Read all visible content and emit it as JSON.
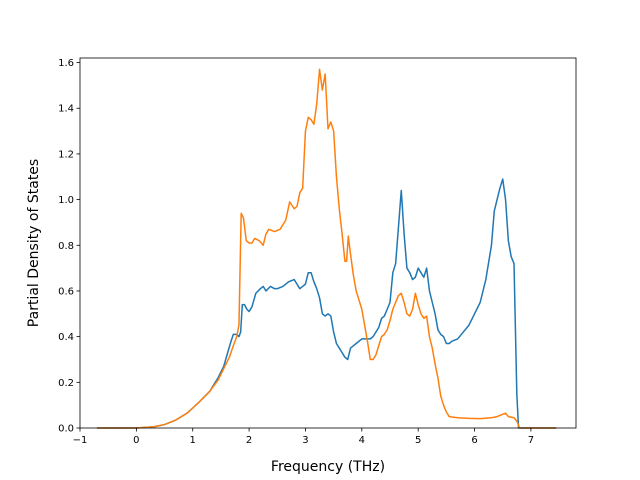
{
  "chart_data": {
    "type": "line",
    "title": "",
    "xlabel": "Frequency (THz)",
    "ylabel": "Partial Density of States",
    "xlim": [
      -1.0,
      7.8
    ],
    "ylim": [
      0.0,
      1.62
    ],
    "xticks": [
      -1,
      0,
      1,
      2,
      3,
      4,
      5,
      6,
      7
    ],
    "yticks": [
      0.0,
      0.2,
      0.4,
      0.6,
      0.8,
      1.0,
      1.2,
      1.4,
      1.6
    ],
    "xtick_labels": [
      "−1",
      "0",
      "1",
      "2",
      "3",
      "4",
      "5",
      "6",
      "7"
    ],
    "ytick_labels": [
      "0.0",
      "0.2",
      "0.4",
      "0.6",
      "0.8",
      "1.0",
      "1.2",
      "1.4",
      "1.6"
    ],
    "grid": false,
    "legend": "none",
    "series": [
      {
        "color": "#1f77b4",
        "points": [
          [
            -0.7,
            0.0
          ],
          [
            0.0,
            0.0
          ],
          [
            0.3,
            0.005
          ],
          [
            0.5,
            0.015
          ],
          [
            0.7,
            0.035
          ],
          [
            0.9,
            0.065
          ],
          [
            1.1,
            0.11
          ],
          [
            1.3,
            0.16
          ],
          [
            1.45,
            0.22
          ],
          [
            1.55,
            0.27
          ],
          [
            1.62,
            0.33
          ],
          [
            1.68,
            0.38
          ],
          [
            1.72,
            0.41
          ],
          [
            1.78,
            0.41
          ],
          [
            1.82,
            0.4
          ],
          [
            1.85,
            0.42
          ],
          [
            1.88,
            0.54
          ],
          [
            1.92,
            0.54
          ],
          [
            1.96,
            0.52
          ],
          [
            2.0,
            0.51
          ],
          [
            2.05,
            0.53
          ],
          [
            2.12,
            0.59
          ],
          [
            2.2,
            0.61
          ],
          [
            2.25,
            0.62
          ],
          [
            2.3,
            0.6
          ],
          [
            2.38,
            0.62
          ],
          [
            2.45,
            0.61
          ],
          [
            2.5,
            0.61
          ],
          [
            2.6,
            0.62
          ],
          [
            2.7,
            0.64
          ],
          [
            2.8,
            0.65
          ],
          [
            2.85,
            0.63
          ],
          [
            2.9,
            0.61
          ],
          [
            2.95,
            0.62
          ],
          [
            3.0,
            0.63
          ],
          [
            3.05,
            0.68
          ],
          [
            3.1,
            0.68
          ],
          [
            3.15,
            0.64
          ],
          [
            3.2,
            0.61
          ],
          [
            3.25,
            0.57
          ],
          [
            3.3,
            0.5
          ],
          [
            3.35,
            0.49
          ],
          [
            3.4,
            0.5
          ],
          [
            3.45,
            0.49
          ],
          [
            3.5,
            0.42
          ],
          [
            3.55,
            0.37
          ],
          [
            3.6,
            0.35
          ],
          [
            3.65,
            0.33
          ],
          [
            3.7,
            0.31
          ],
          [
            3.75,
            0.3
          ],
          [
            3.8,
            0.35
          ],
          [
            3.85,
            0.36
          ],
          [
            3.9,
            0.37
          ],
          [
            4.0,
            0.39
          ],
          [
            4.1,
            0.39
          ],
          [
            4.15,
            0.39
          ],
          [
            4.2,
            0.4
          ],
          [
            4.3,
            0.44
          ],
          [
            4.35,
            0.48
          ],
          [
            4.4,
            0.49
          ],
          [
            4.45,
            0.52
          ],
          [
            4.5,
            0.55
          ],
          [
            4.55,
            0.68
          ],
          [
            4.6,
            0.72
          ],
          [
            4.65,
            0.88
          ],
          [
            4.7,
            1.04
          ],
          [
            4.75,
            0.85
          ],
          [
            4.8,
            0.7
          ],
          [
            4.85,
            0.68
          ],
          [
            4.9,
            0.65
          ],
          [
            4.95,
            0.66
          ],
          [
            5.0,
            0.7
          ],
          [
            5.05,
            0.68
          ],
          [
            5.1,
            0.66
          ],
          [
            5.15,
            0.7
          ],
          [
            5.2,
            0.6
          ],
          [
            5.25,
            0.55
          ],
          [
            5.3,
            0.5
          ],
          [
            5.35,
            0.43
          ],
          [
            5.4,
            0.41
          ],
          [
            5.45,
            0.4
          ],
          [
            5.5,
            0.37
          ],
          [
            5.55,
            0.37
          ],
          [
            5.6,
            0.38
          ],
          [
            5.7,
            0.39
          ],
          [
            5.8,
            0.42
          ],
          [
            5.9,
            0.45
          ],
          [
            6.0,
            0.5
          ],
          [
            6.1,
            0.55
          ],
          [
            6.2,
            0.65
          ],
          [
            6.3,
            0.8
          ],
          [
            6.35,
            0.95
          ],
          [
            6.4,
            1.0
          ],
          [
            6.45,
            1.05
          ],
          [
            6.5,
            1.09
          ],
          [
            6.55,
            1.0
          ],
          [
            6.6,
            0.82
          ],
          [
            6.65,
            0.75
          ],
          [
            6.7,
            0.72
          ],
          [
            6.75,
            0.15
          ],
          [
            6.78,
            0.0
          ],
          [
            7.45,
            0.0
          ]
        ]
      },
      {
        "color": "#ff7f0e",
        "points": [
          [
            -0.7,
            0.0
          ],
          [
            0.0,
            0.0
          ],
          [
            0.3,
            0.005
          ],
          [
            0.5,
            0.015
          ],
          [
            0.7,
            0.035
          ],
          [
            0.9,
            0.065
          ],
          [
            1.1,
            0.11
          ],
          [
            1.3,
            0.16
          ],
          [
            1.45,
            0.21
          ],
          [
            1.55,
            0.26
          ],
          [
            1.65,
            0.31
          ],
          [
            1.72,
            0.36
          ],
          [
            1.78,
            0.4
          ],
          [
            1.82,
            0.45
          ],
          [
            1.86,
            0.94
          ],
          [
            1.9,
            0.92
          ],
          [
            1.95,
            0.82
          ],
          [
            2.0,
            0.81
          ],
          [
            2.05,
            0.81
          ],
          [
            2.1,
            0.83
          ],
          [
            2.18,
            0.82
          ],
          [
            2.25,
            0.8
          ],
          [
            2.3,
            0.85
          ],
          [
            2.35,
            0.87
          ],
          [
            2.45,
            0.86
          ],
          [
            2.55,
            0.87
          ],
          [
            2.65,
            0.91
          ],
          [
            2.72,
            0.99
          ],
          [
            2.8,
            0.96
          ],
          [
            2.85,
            0.97
          ],
          [
            2.9,
            1.03
          ],
          [
            2.95,
            1.05
          ],
          [
            3.0,
            1.3
          ],
          [
            3.05,
            1.36
          ],
          [
            3.1,
            1.35
          ],
          [
            3.15,
            1.33
          ],
          [
            3.2,
            1.42
          ],
          [
            3.25,
            1.57
          ],
          [
            3.3,
            1.48
          ],
          [
            3.35,
            1.55
          ],
          [
            3.4,
            1.31
          ],
          [
            3.45,
            1.34
          ],
          [
            3.5,
            1.3
          ],
          [
            3.55,
            1.1
          ],
          [
            3.6,
            0.96
          ],
          [
            3.65,
            0.85
          ],
          [
            3.7,
            0.73
          ],
          [
            3.73,
            0.73
          ],
          [
            3.76,
            0.84
          ],
          [
            3.8,
            0.76
          ],
          [
            3.85,
            0.67
          ],
          [
            3.9,
            0.6
          ],
          [
            4.0,
            0.52
          ],
          [
            4.05,
            0.45
          ],
          [
            4.1,
            0.38
          ],
          [
            4.15,
            0.3
          ],
          [
            4.2,
            0.3
          ],
          [
            4.25,
            0.32
          ],
          [
            4.3,
            0.36
          ],
          [
            4.35,
            0.4
          ],
          [
            4.4,
            0.41
          ],
          [
            4.45,
            0.43
          ],
          [
            4.5,
            0.47
          ],
          [
            4.55,
            0.52
          ],
          [
            4.6,
            0.55
          ],
          [
            4.65,
            0.58
          ],
          [
            4.7,
            0.59
          ],
          [
            4.75,
            0.55
          ],
          [
            4.8,
            0.5
          ],
          [
            4.85,
            0.49
          ],
          [
            4.9,
            0.52
          ],
          [
            4.95,
            0.59
          ],
          [
            5.0,
            0.54
          ],
          [
            5.05,
            0.5
          ],
          [
            5.1,
            0.48
          ],
          [
            5.15,
            0.49
          ],
          [
            5.2,
            0.4
          ],
          [
            5.25,
            0.35
          ],
          [
            5.3,
            0.28
          ],
          [
            5.35,
            0.22
          ],
          [
            5.4,
            0.14
          ],
          [
            5.45,
            0.1
          ],
          [
            5.5,
            0.07
          ],
          [
            5.55,
            0.05
          ],
          [
            5.7,
            0.045
          ],
          [
            5.9,
            0.042
          ],
          [
            6.1,
            0.041
          ],
          [
            6.3,
            0.045
          ],
          [
            6.4,
            0.05
          ],
          [
            6.5,
            0.06
          ],
          [
            6.55,
            0.065
          ],
          [
            6.6,
            0.05
          ],
          [
            6.7,
            0.045
          ],
          [
            6.75,
            0.03
          ],
          [
            6.8,
            0.0
          ],
          [
            7.45,
            0.0
          ]
        ]
      }
    ]
  }
}
